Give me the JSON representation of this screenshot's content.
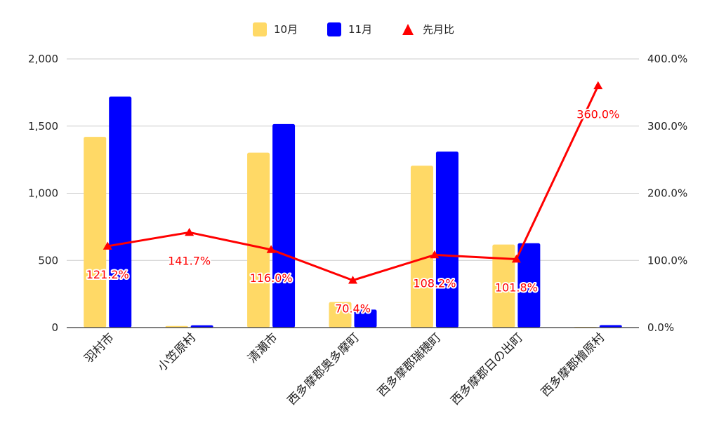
{
  "chart_data": {
    "type": "bar",
    "title": "",
    "xlabel": "",
    "ylabel": "",
    "categories": [
      "羽村市",
      "小笠原村",
      "清瀬市",
      "西多摩郡奥多摩町",
      "西多摩郡瑞穂町",
      "西多摩郡日の出町",
      "西多摩郡檜原村"
    ],
    "series": [
      {
        "name": "10月",
        "type": "bar",
        "axis": "left",
        "color": "#FFD966",
        "values": [
          1420,
          12,
          1302,
          190,
          1205,
          618,
          5
        ]
      },
      {
        "name": "11月",
        "type": "bar",
        "axis": "left",
        "color": "#0000FF",
        "values": [
          1720,
          17,
          1515,
          134,
          1310,
          628,
          18
        ]
      },
      {
        "name": "先月比",
        "type": "line",
        "axis": "right",
        "color": "#FF0000",
        "marker": "triangle",
        "values": [
          121.2,
          141.7,
          116.0,
          70.4,
          108.2,
          101.8,
          360.0
        ]
      }
    ],
    "data_labels": [
      "121.2%",
      "141.7%",
      "116.0%",
      "70.4%",
      "108.2%",
      "101.8%",
      "360.0%"
    ],
    "y_left": {
      "min": 0,
      "max": 2000,
      "ticks": [
        "0",
        "500",
        "1,000",
        "1,500",
        "2,000"
      ]
    },
    "y_right": {
      "min": 0,
      "max": 400,
      "ticks": [
        "0.0%",
        "100.0%",
        "200.0%",
        "300.0%",
        "400.0%"
      ]
    },
    "grid": true,
    "legend_position": "top"
  }
}
